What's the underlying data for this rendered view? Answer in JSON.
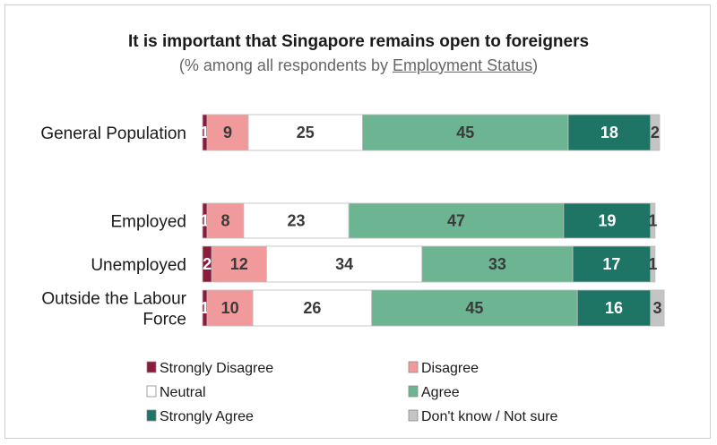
{
  "chart_data": {
    "type": "bar",
    "orientation": "horizontal",
    "stacked": true,
    "title": "It is important that Singapore remains open to foreigners",
    "subtitle_prefix": "(% among all respondents by ",
    "subtitle_link": "Employment Status",
    "subtitle_suffix": ")",
    "categories": [
      [
        "General Population"
      ],
      [
        "Employed"
      ],
      [
        "Unemployed"
      ],
      [
        "Outside the Labour",
        "Force"
      ]
    ],
    "series": [
      {
        "name": "Strongly Disagree",
        "color": "#8b1a3b",
        "label_color": "#ffffff",
        "values": [
          1,
          1,
          2,
          1
        ]
      },
      {
        "name": "Disagree",
        "color": "#f19a9c",
        "label_color": "#3a3a3a",
        "values": [
          9,
          8,
          12,
          10
        ]
      },
      {
        "name": "Neutral",
        "color": "#ffffff",
        "label_color": "#3a3a3a",
        "values": [
          25,
          23,
          34,
          26
        ]
      },
      {
        "name": "Agree",
        "color": "#6db492",
        "label_color": "#3a3a3a",
        "values": [
          45,
          47,
          33,
          45
        ]
      },
      {
        "name": "Strongly Agree",
        "color": "#1e7565",
        "label_color": "#ffffff",
        "values": [
          18,
          19,
          17,
          16
        ]
      },
      {
        "name": "Don't know / Not sure",
        "color": "#c4c4c4",
        "label_color": "#3a3a3a",
        "values": [
          2,
          1,
          1,
          3
        ]
      }
    ],
    "xlim": [
      0,
      100
    ],
    "legend_position": "bottom"
  }
}
